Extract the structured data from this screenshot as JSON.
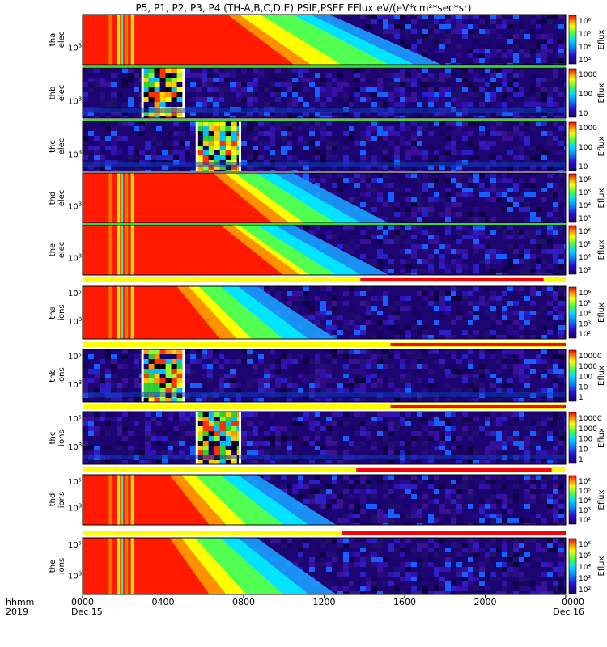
{
  "chart_data": {
    "type": "heatmap",
    "title": "P5, P1, P2, P3, P4 (TH-A,B,C,D,E) PSIF,PSEF EFlux eV/(eV*cm²*sec*sr)",
    "x_axis": {
      "label_line1": "hhmm",
      "label_line2": "2019",
      "ticks": [
        "0000",
        "0400",
        "0800",
        "1200",
        "1600",
        "2000",
        "0000"
      ],
      "date_labels": [
        "Dec 15",
        "",
        "",
        "",
        "",
        "",
        "Dec 16"
      ],
      "range_hours": [
        0,
        24
      ]
    },
    "colorbar_label": "Eflux",
    "panels": [
      {
        "id": "tha-elec",
        "probe": "tha",
        "species": "elec",
        "ytick_exp": "3",
        "cbar": [
          "10⁶",
          "10⁵",
          "10⁴",
          "10³"
        ],
        "style": "smooth",
        "red_end": 10.0,
        "yellow_end": 14.5
      },
      {
        "id": "thb-elec",
        "probe": "thb",
        "species": "elec",
        "ytick_exp": "3",
        "cbar": [
          "1000",
          "100",
          "10"
        ],
        "style": "noise",
        "burst": [
          3.0,
          5.0
        ]
      },
      {
        "id": "thc-elec",
        "probe": "thc",
        "species": "elec",
        "ytick_exp": "3",
        "cbar": [
          "1000",
          "100",
          "10"
        ],
        "style": "noise",
        "burst": [
          5.7,
          7.8
        ]
      },
      {
        "id": "thd-elec",
        "probe": "thd",
        "species": "elec",
        "ytick_exp": "3",
        "cbar": [
          "10⁶",
          "10⁵",
          "10⁴",
          "10³"
        ],
        "style": "smooth",
        "red_end": 9.0,
        "yellow_end": 12.0
      },
      {
        "id": "the-elec",
        "probe": "the",
        "species": "elec",
        "ytick_exp": "3",
        "cbar": [
          "10⁶",
          "10⁵",
          "10⁴",
          "10³"
        ],
        "style": "smooth",
        "red_end": 9.5,
        "yellow_end": 12.0
      },
      {
        "id": "tha-ions",
        "probe": "tha",
        "species": "ions",
        "ytick_exp": "3",
        "ytick_top": "10⁵",
        "cbar": [
          "10⁶",
          "10⁵",
          "10⁴",
          "10³",
          "10²"
        ],
        "style": "smooth",
        "red_end": 6.5,
        "yellow_end": 9.5
      },
      {
        "id": "thb-ions",
        "probe": "thb",
        "species": "ions",
        "ytick_exp": "3",
        "ytick_top": "10⁵",
        "cbar": [
          "10000",
          "1000",
          "100",
          "10",
          "1"
        ],
        "style": "noise",
        "burst": [
          3.0,
          5.0
        ]
      },
      {
        "id": "thc-ions",
        "probe": "thc",
        "species": "ions",
        "ytick_exp": "3",
        "ytick_top": "10⁵",
        "cbar": [
          "10000",
          "1000",
          "100",
          "10",
          "1"
        ],
        "style": "noise",
        "burst": [
          5.7,
          7.8
        ]
      },
      {
        "id": "thd-ions",
        "probe": "thd",
        "species": "ions",
        "ytick_exp": "3",
        "ytick_top": "10⁵",
        "cbar": [
          "10⁶",
          "10⁵",
          "10⁴",
          "10³",
          "10²"
        ],
        "style": "smooth",
        "red_end": 6.0,
        "yellow_end": 9.5
      },
      {
        "id": "the-ions",
        "probe": "the",
        "species": "ions",
        "ytick_exp": "3",
        "ytick_top": "10⁵",
        "cbar": [
          "10⁶",
          "10⁵",
          "10⁴",
          "10³",
          "10²"
        ],
        "style": "smooth",
        "red_end": 6.0,
        "yellow_end": 9.5
      }
    ],
    "mode_bars": [
      {
        "after_panel": "the-elec",
        "red_start": 13.8,
        "red_end": 22.9
      },
      {
        "after_panel": "tha-ions",
        "red_start": 15.3,
        "red_end": 24.0
      },
      {
        "after_panel": "thb-ions",
        "red_start": 15.3,
        "red_end": 24.0
      },
      {
        "after_panel": "thc-ions",
        "red_start": 13.6,
        "red_end": 23.3
      },
      {
        "after_panel": "thd-ions",
        "red_start": 12.9,
        "red_end": 24.0
      }
    ],
    "grid": false
  }
}
